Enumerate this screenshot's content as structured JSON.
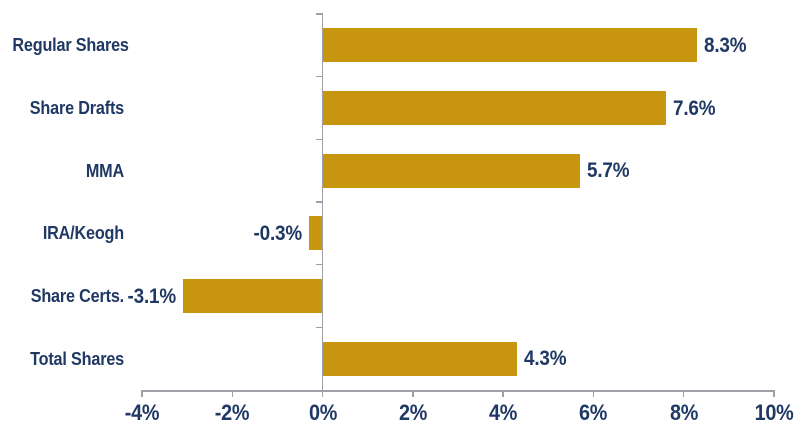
{
  "chart_data": {
    "type": "bar",
    "orientation": "horizontal",
    "title": "",
    "categories": [
      "Regular Shares",
      "Share Drafts",
      "MMA",
      "IRA/Keogh",
      "Share Certs.",
      "Total Shares"
    ],
    "values": [
      8.3,
      7.6,
      5.7,
      -0.3,
      -3.1,
      4.3
    ],
    "data_labels": [
      "8.3%",
      "7.6%",
      "5.7%",
      "-0.3%",
      "-3.1%",
      "4.3%"
    ],
    "x_ticks": [
      {
        "value": -4,
        "label": "-4%"
      },
      {
        "value": -2,
        "label": "-2%"
      },
      {
        "value": 0,
        "label": "0%"
      },
      {
        "value": 2,
        "label": "2%"
      },
      {
        "value": 4,
        "label": "4%"
      },
      {
        "value": 6,
        "label": "6%"
      },
      {
        "value": 8,
        "label": "8%"
      },
      {
        "value": 10,
        "label": "10%"
      }
    ],
    "xlim": [
      -4,
      10
    ],
    "grid": false,
    "legend": false,
    "colors": {
      "bar": "#C8950E",
      "text": "#1F3864",
      "axis": "#9DA0A8",
      "background": "#FFFFFF"
    }
  }
}
